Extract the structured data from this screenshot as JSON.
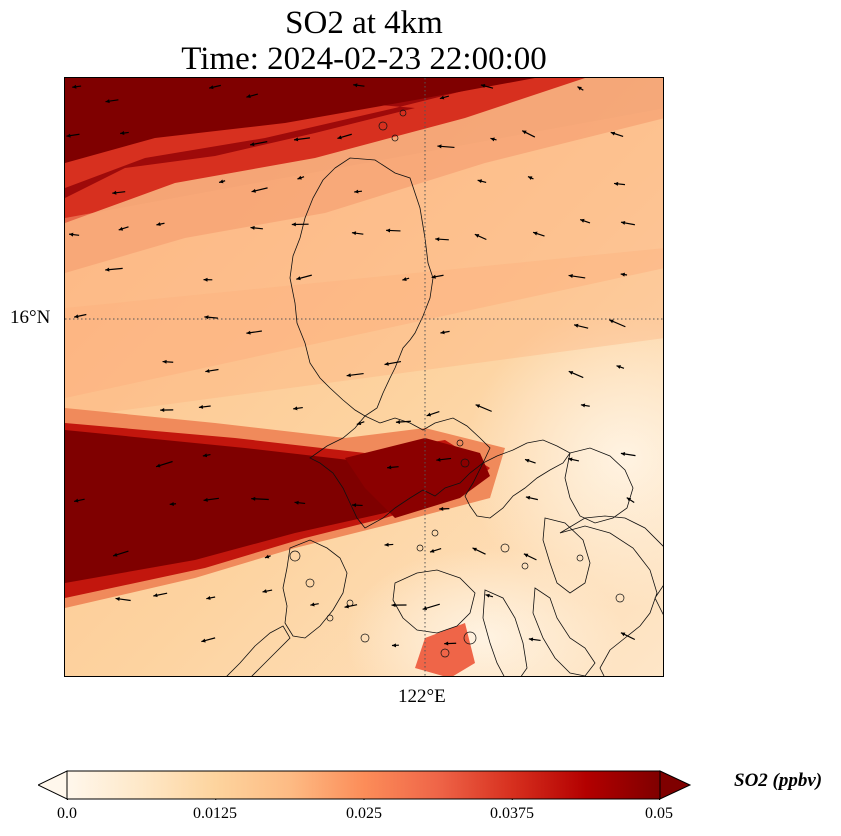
{
  "title": {
    "line1": "SO2 at 4km",
    "line2": "Time: 2024-02-23 22:00:00"
  },
  "axes": {
    "lat_label": "16°N",
    "lon_label": "122°E"
  },
  "colorbar": {
    "label": "SO2 (ppbv)",
    "ticks": [
      "0.0",
      "0.0125",
      "0.025",
      "0.0375",
      "0.05"
    ],
    "min": 0.0,
    "max": 0.05,
    "extend": "both",
    "colormap": "OrRd",
    "colors": [
      "#fff7ec",
      "#fee8c8",
      "#fdd49e",
      "#fdbb84",
      "#fc8d59",
      "#ef6548",
      "#d7301f",
      "#b30000",
      "#7f0000"
    ]
  },
  "map_elements": {
    "gridlines": "dotted",
    "coastlines": true,
    "wind_vectors": true
  }
}
